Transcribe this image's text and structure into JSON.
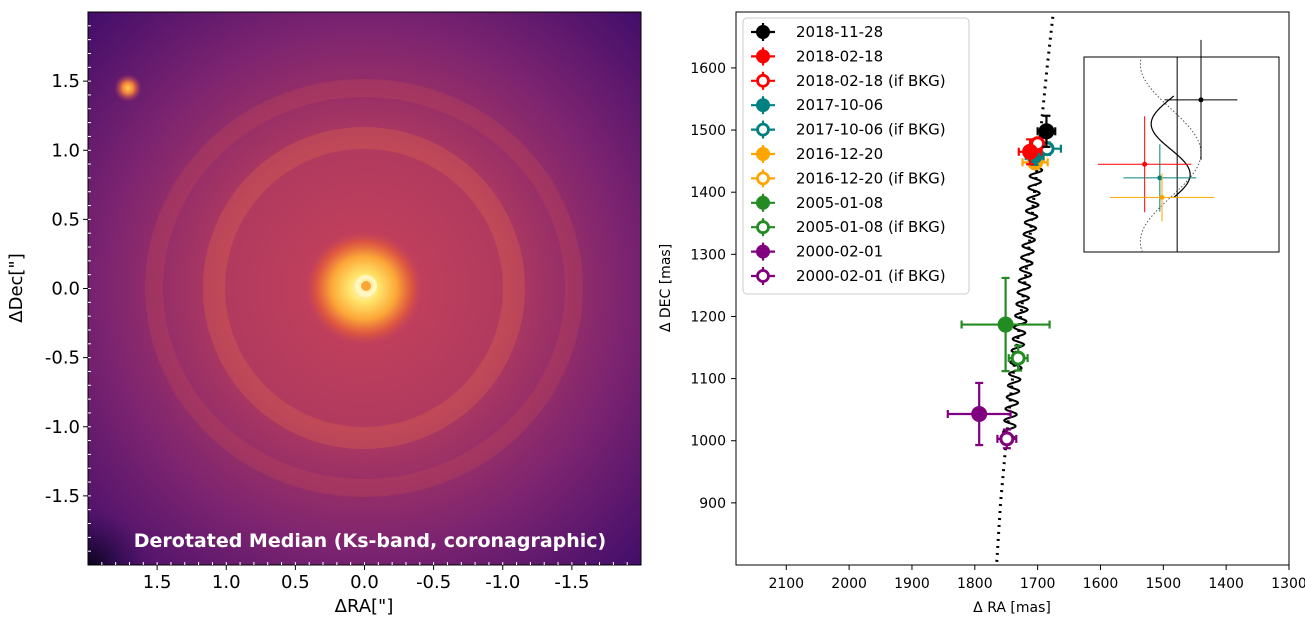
{
  "chart_data": [
    {
      "type": "heatmap",
      "colormap": "inferno",
      "xlabel": "ΔRA[\"]",
      "ylabel": "ΔDec[\"]",
      "xlim": [
        2.0,
        -2.0
      ],
      "ylim": [
        -2.0,
        2.0
      ],
      "x_ticks": [
        "1.5",
        "1.0",
        "0.5",
        "0.0",
        "-0.5",
        "-1.0",
        "-1.5"
      ],
      "y_ticks": [
        "1.5",
        "1.0",
        "0.5",
        "0.0",
        "-0.5",
        "-1.0",
        "-1.5"
      ],
      "annotation": "Derotated Median (Ks-band, coronagraphic)",
      "features": [
        {
          "name": "central star",
          "x": 0.0,
          "y": 0.0
        },
        {
          "name": "companion",
          "x": 1.7,
          "y": 1.45
        }
      ]
    },
    {
      "type": "scatter",
      "xlabel": "Δ RA [mas]",
      "ylabel": "Δ DEC [mas]",
      "xlim": [
        2180,
        1300
      ],
      "ylim": [
        800,
        1690
      ],
      "x_ticks": [
        "2100",
        "2000",
        "1900",
        "1800",
        "1700",
        "1600",
        "1500",
        "1400",
        "1300"
      ],
      "y_ticks": [
        "900",
        "1000",
        "1100",
        "1200",
        "1300",
        "1400",
        "1500",
        "1600"
      ],
      "legend_position": "top-left",
      "series": [
        {
          "name": "2018-11-28",
          "color": "#000000",
          "filled": true,
          "x": 1686,
          "y": 1498,
          "xerr": 14,
          "yerr": 25
        },
        {
          "name": "2018-02-18",
          "color": "#ff0000",
          "filled": true,
          "x": 1712,
          "y": 1465,
          "xerr": 18,
          "yerr": 20
        },
        {
          "name": "2018-02-18 (if BKG)",
          "color": "#ff0000",
          "filled": false,
          "x": 1700,
          "y": 1478,
          "xerr": 6,
          "yerr": 6
        },
        {
          "name": "2017-10-06",
          "color": "#008080",
          "filled": true,
          "x": 1705,
          "y": 1458,
          "xerr": 14,
          "yerr": 14
        },
        {
          "name": "2017-10-06 (if BKG)",
          "color": "#008080",
          "filled": false,
          "x": 1685,
          "y": 1470,
          "xerr": 22,
          "yerr": 10
        },
        {
          "name": "2016-12-20",
          "color": "#ffa500",
          "filled": true,
          "x": 1704,
          "y": 1448,
          "xerr": 20,
          "yerr": 10
        },
        {
          "name": "2016-12-20 (if BKG)",
          "color": "#ffa500",
          "filled": false,
          "x": 1700,
          "y": 1454,
          "xerr": 6,
          "yerr": 6
        },
        {
          "name": "2005-01-08",
          "color": "#228b22",
          "filled": true,
          "x": 1751,
          "y": 1187,
          "xerr": 70,
          "yerr": 75
        },
        {
          "name": "2005-01-08 (if BKG)",
          "color": "#228b22",
          "filled": false,
          "x": 1731,
          "y": 1133,
          "xerr": 15,
          "yerr": 20
        },
        {
          "name": "2000-02-01",
          "color": "#800080",
          "filled": true,
          "x": 1793,
          "y": 1043,
          "xerr": 50,
          "yerr": 50
        },
        {
          "name": "2000-02-01 (if BKG)",
          "color": "#800080",
          "filled": false,
          "x": 1749,
          "y": 1003,
          "xerr": 15,
          "yerr": 15
        }
      ],
      "background_track": {
        "style": "dotted",
        "x": [
          1765,
          1759,
          1750,
          1740,
          1727,
          1715,
          1705,
          1695,
          1685,
          1675
        ],
        "y": [
          805,
          900,
          1000,
          1100,
          1200,
          1300,
          1400,
          1500,
          1600,
          1690
        ]
      },
      "wiggle_track": {
        "style": "solid",
        "x_start": 1747,
        "y_start": 1000,
        "x_end": 1697,
        "y_end": 1487
      },
      "inset": {
        "type": "scatter",
        "axis_labels": false
      }
    }
  ]
}
